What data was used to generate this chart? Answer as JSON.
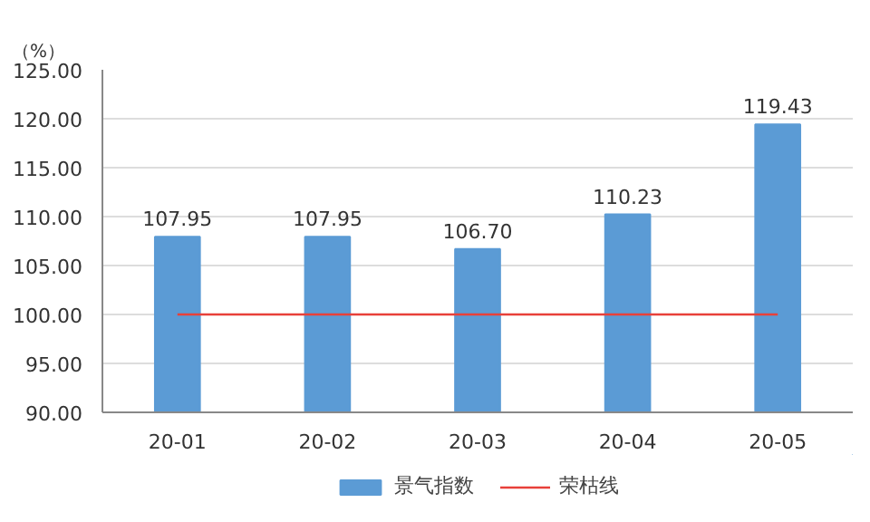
{
  "chart_data": {
    "type": "bar",
    "ylabel": "（%）",
    "categories": [
      "20-01",
      "20-02",
      "20-03",
      "20-04",
      "20-05"
    ],
    "series": [
      {
        "name": "景气指数",
        "color": "#5b9bd5",
        "values": [
          107.95,
          107.95,
          106.7,
          110.23,
          119.43
        ],
        "value_labels": [
          "107.95",
          "107.95",
          "106.70",
          "110.23",
          "119.43"
        ]
      },
      {
        "name": "荣枯线",
        "type": "line",
        "color": "#e8403a",
        "values": [
          100,
          100,
          100,
          100,
          100
        ]
      }
    ],
    "ylim": [
      90,
      125
    ],
    "yticks": [
      {
        "value": 90,
        "label": "90.00"
      },
      {
        "value": 95,
        "label": "95.00"
      },
      {
        "value": 100,
        "label": "100.00"
      },
      {
        "value": 105,
        "label": "105.00"
      },
      {
        "value": 110,
        "label": "110.00"
      },
      {
        "value": 115,
        "label": "115.00"
      },
      {
        "value": 120,
        "label": "120.00"
      },
      {
        "value": 125,
        "label": "125.00"
      }
    ],
    "grid": "y",
    "legend": "bottom"
  }
}
